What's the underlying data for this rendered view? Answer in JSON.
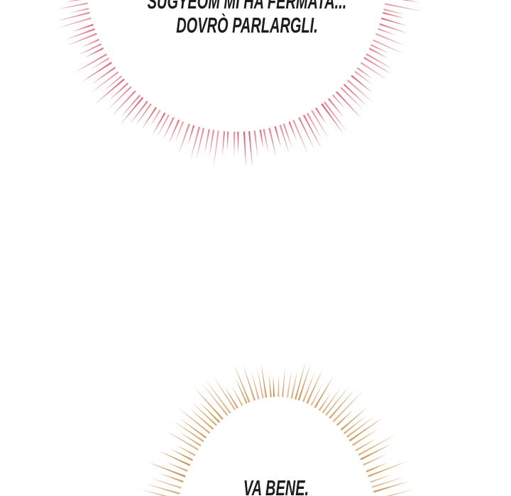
{
  "page": {
    "background_color": "#ffffff",
    "text_color": "#1d1d1d"
  },
  "speech_bubbles": [
    {
      "name": "top-burst-bubble",
      "style": "burst",
      "spike_color": "#d55562",
      "lines": [
        "SUGYEOM MI HA FERMATA...",
        "DOVRÒ PARLARGLI."
      ]
    },
    {
      "name": "bottom-burst-bubble",
      "style": "burst",
      "spike_color": "#c3873e",
      "lines": [
        "VA BENE."
      ]
    }
  ]
}
